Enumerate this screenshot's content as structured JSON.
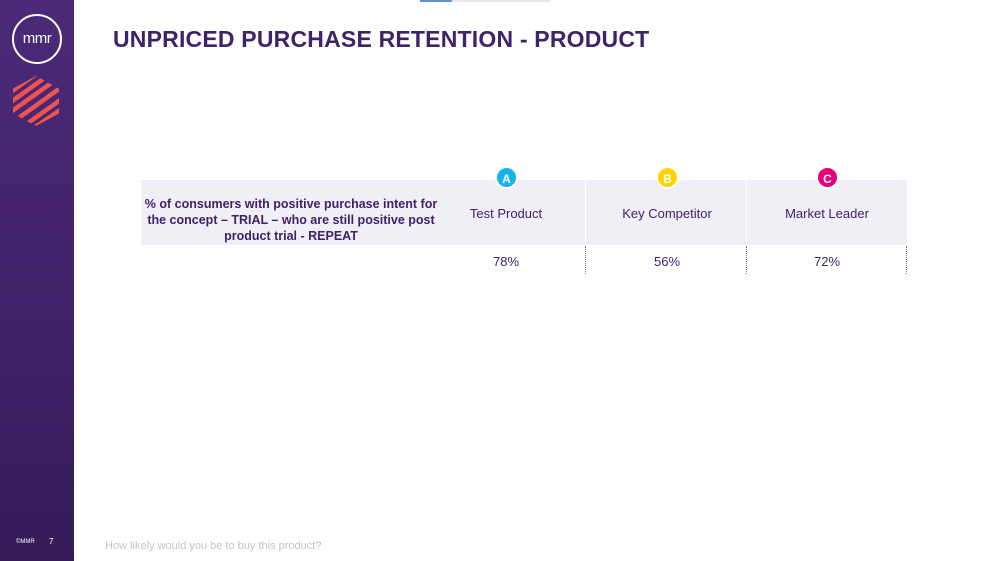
{
  "sidebar": {
    "logo": "mmr",
    "copyright": "©MMR",
    "page_number": "7"
  },
  "title": "UNPRICED PURCHASE RETENTION - PRODUCT",
  "table": {
    "row_label": "% of consumers with positive purchase intent for the concept – TRIAL – who are still positive post product trial - REPEAT",
    "columns": [
      {
        "badge": "A",
        "name": "Test Product",
        "value": "78%",
        "color": "#14b4ec"
      },
      {
        "badge": "B",
        "name": "Key Competitor",
        "value": "56%",
        "color": "#ffd400"
      },
      {
        "badge": "C",
        "name": "Market Leader",
        "value": "72%",
        "color": "#e6007e"
      }
    ]
  },
  "footer": {
    "question": "How likely would you be to buy this product?"
  }
}
